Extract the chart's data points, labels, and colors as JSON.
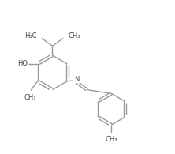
{
  "bg_color": "#ffffff",
  "line_color": "#999999",
  "text_color": "#444444",
  "line_width": 1.0,
  "font_size": 6.0,
  "fig_width": 2.22,
  "fig_height": 1.95,
  "dpi": 100,
  "xlim": [
    0,
    11
  ],
  "ylim": [
    0,
    10
  ]
}
